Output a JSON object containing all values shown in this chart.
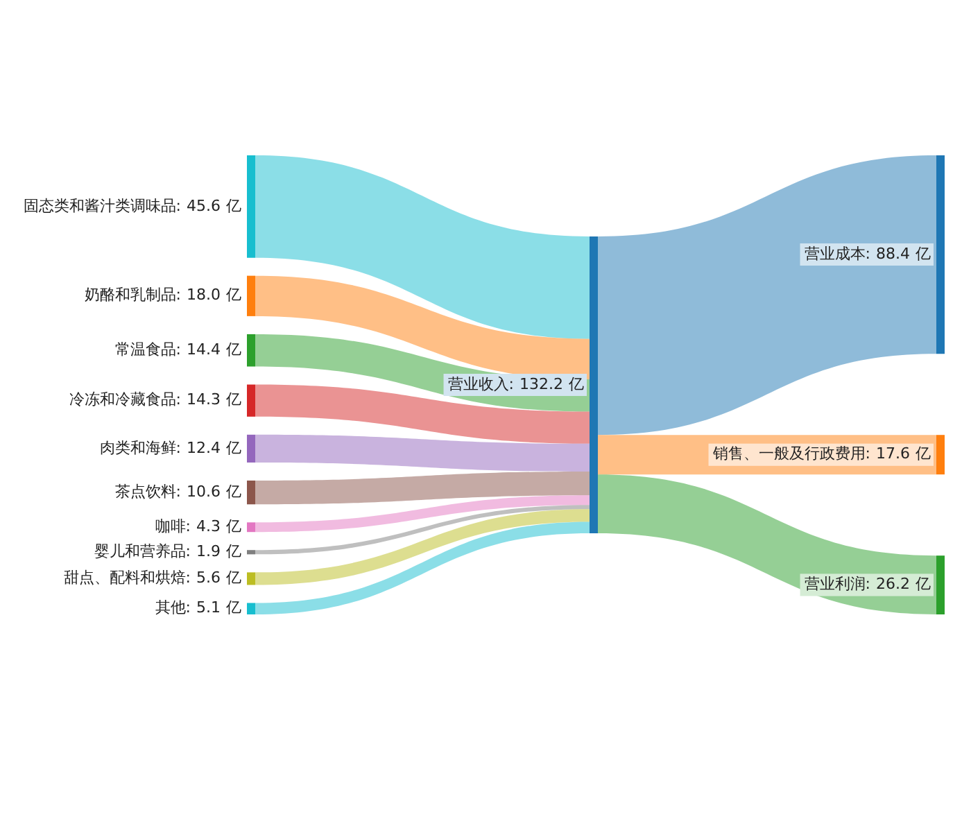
{
  "chart_data": {
    "type": "other",
    "categories": [
      "固态类和酱汁类调味品",
      "奶酪和乳制品",
      "常温食品",
      "冷冻和冷藏食品",
      "肉类和海鲜",
      "茶点饮料",
      "咖啡",
      "婴儿和营养品",
      "甜点、配料和烘焙",
      "其他",
      "营业收入",
      "营业成本",
      "销售、一般及行政费用",
      "营业利润"
    ],
    "colors": [
      "#17becf",
      "#ff7f0e",
      "#2ca02c",
      "#d62728",
      "#9467bd",
      "#8c564b",
      "#e377c2",
      "#7f7f7f",
      "#bcbd22",
      "#17becf",
      "#1f77b4",
      "#1f77b4",
      "#ff7f0e",
      "#2ca02c"
    ],
    "series": [
      {
        "values": [
          45.6,
          18.0,
          14.4,
          14.3,
          12.4,
          10.6,
          4.3,
          1.9,
          5.6,
          5.1,
          null,
          null,
          null,
          null
        ],
        "value_labels": [
          ": 45.6 亿",
          ": 18.0 亿",
          ": 14.4 亿",
          ": 14.3 亿",
          ": 12.4 亿",
          ": 10.6 亿",
          ": 4.3 亿",
          ": 1.9 亿",
          ": 5.6 亿",
          ": 5.1 亿",
          null,
          null,
          null,
          null
        ]
      },
      {
        "values": [
          null,
          null,
          null,
          null,
          null,
          null,
          null,
          null,
          null,
          null,
          132.2,
          null,
          null,
          null
        ],
        "value_labels": [
          null,
          null,
          null,
          null,
          null,
          null,
          null,
          null,
          null,
          null,
          ": 132.2 亿",
          null,
          null,
          null
        ]
      },
      {
        "values": [
          null,
          null,
          null,
          null,
          null,
          null,
          null,
          null,
          null,
          null,
          null,
          88.4,
          17.6,
          26.2
        ],
        "value_labels": [
          null,
          null,
          null,
          null,
          null,
          null,
          null,
          null,
          null,
          null,
          null,
          ": 88.4 亿",
          ": 17.6 亿",
          ": 26.2 亿"
        ]
      }
    ]
  }
}
